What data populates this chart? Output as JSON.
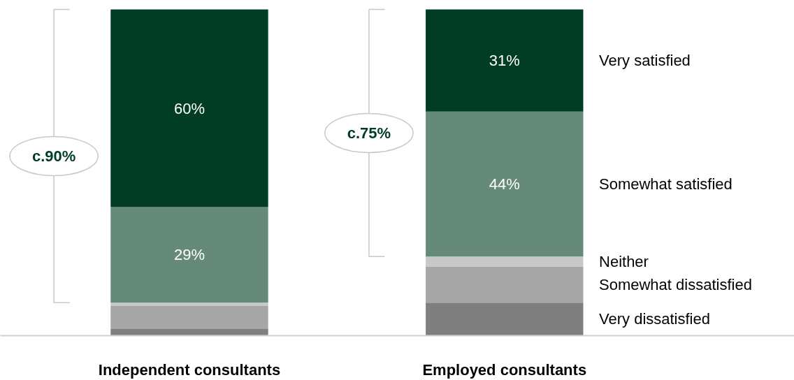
{
  "chart_data": {
    "type": "bar",
    "stacked": true,
    "categories": [
      "Independent consultants",
      "Employed consultants"
    ],
    "series": [
      {
        "name": "Very dissatisfied",
        "color": "#7f7f7f",
        "values": [
          2,
          10
        ],
        "value_labels": [
          null,
          null
        ]
      },
      {
        "name": "Somewhat dissatisfied",
        "color": "#a6a6a6",
        "values": [
          7,
          11
        ],
        "value_labels": [
          null,
          null
        ]
      },
      {
        "name": "Neither",
        "color": "#c8c8c8",
        "values": [
          1,
          3
        ],
        "value_labels": [
          null,
          null
        ]
      },
      {
        "name": "Somewhat satisfied",
        "color": "#668a7a",
        "values": [
          29,
          44
        ],
        "value_labels": [
          "29%",
          "44%"
        ]
      },
      {
        "name": "Very satisfied",
        "color": "#003d24",
        "values": [
          60,
          31
        ],
        "value_labels": [
          "60%",
          "31%"
        ]
      }
    ],
    "annotations": [
      "c.90%",
      "c.75%"
    ],
    "grid": false
  }
}
